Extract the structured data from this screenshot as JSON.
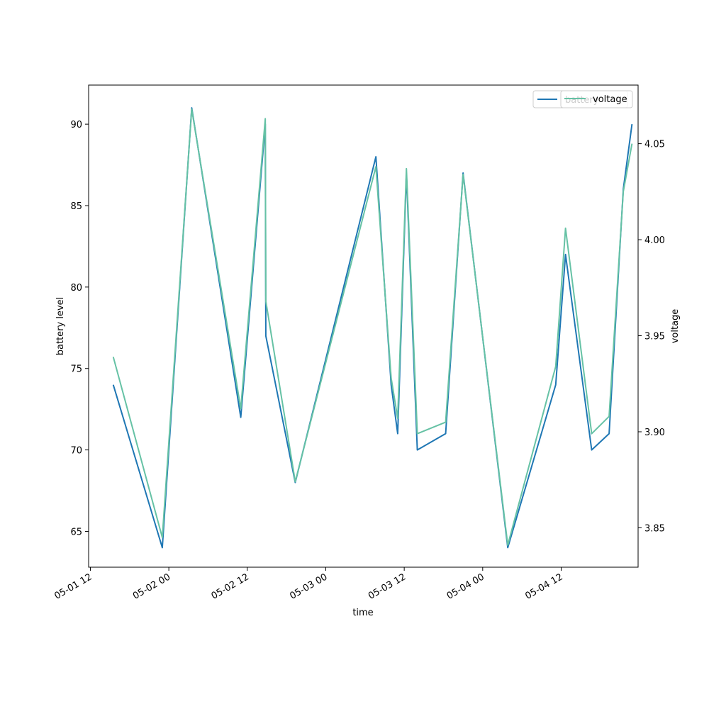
{
  "chart_data": {
    "type": "line",
    "xlabel": "time",
    "ylabel_left": "battery level",
    "ylabel_right": "voltage",
    "x_ticks": [
      "05-01 12",
      "05-02 00",
      "05-02 12",
      "05-03 00",
      "05-03 12",
      "05-04 00",
      "05-04 12"
    ],
    "x_range": [
      "2024-05-01T11:44",
      "2024-05-04T23:46"
    ],
    "y_left_ticks": [
      65,
      70,
      75,
      80,
      85,
      90
    ],
    "y_left_range": [
      62.8,
      92.4
    ],
    "y_right_ticks": [
      3.85,
      3.9,
      3.95,
      4.0,
      4.05
    ],
    "y_right_ticks_labels": [
      "3.85",
      "3.90",
      "3.95",
      "4.00",
      "4.05"
    ],
    "y_right_range": [
      3.8295,
      4.0805
    ],
    "grid": false,
    "legend_position": "top-right",
    "series": [
      {
        "name": "battery",
        "axis": "left",
        "color": "#1f77b4",
        "x": [
          "2024-05-01T15:30",
          "2024-05-01T23:00",
          "2024-05-02T03:30",
          "2024-05-02T11:00",
          "2024-05-02T14:45",
          "2024-05-02T14:50",
          "2024-05-02T19:20",
          "2024-05-03T07:40",
          "2024-05-03T10:00",
          "2024-05-03T11:00",
          "2024-05-03T12:20",
          "2024-05-03T14:00",
          "2024-05-03T18:20",
          "2024-05-03T21:00",
          "2024-05-04T03:50",
          "2024-05-04T11:10",
          "2024-05-04T12:40",
          "2024-05-04T16:40",
          "2024-05-04T19:20",
          "2024-05-04T21:30",
          "2024-05-04T22:50"
        ],
        "values": [
          74,
          64,
          91,
          72,
          90,
          77,
          68,
          88,
          74,
          71,
          87,
          70,
          71,
          87,
          64,
          74,
          82,
          70,
          71,
          86,
          90
        ]
      },
      {
        "name": "voltage",
        "axis": "right",
        "color": "#66c2a5",
        "x": [
          "2024-05-01T15:30",
          "2024-05-01T23:00",
          "2024-05-02T03:30",
          "2024-05-02T11:00",
          "2024-05-02T14:45",
          "2024-05-02T14:50",
          "2024-05-02T19:20",
          "2024-05-03T07:40",
          "2024-05-03T10:00",
          "2024-05-03T11:00",
          "2024-05-03T12:20",
          "2024-05-03T14:00",
          "2024-05-03T18:20",
          "2024-05-03T21:00",
          "2024-05-04T03:50",
          "2024-05-04T11:10",
          "2024-05-04T12:40",
          "2024-05-04T16:40",
          "2024-05-04T19:20",
          "2024-05-04T21:30",
          "2024-05-04T22:50"
        ],
        "values": [
          3.939,
          3.845,
          4.068,
          3.912,
          4.063,
          3.968,
          3.874,
          4.038,
          3.928,
          3.907,
          4.037,
          3.899,
          3.905,
          4.034,
          3.841,
          3.934,
          4.006,
          3.899,
          3.908,
          4.025,
          4.05
        ]
      }
    ]
  }
}
